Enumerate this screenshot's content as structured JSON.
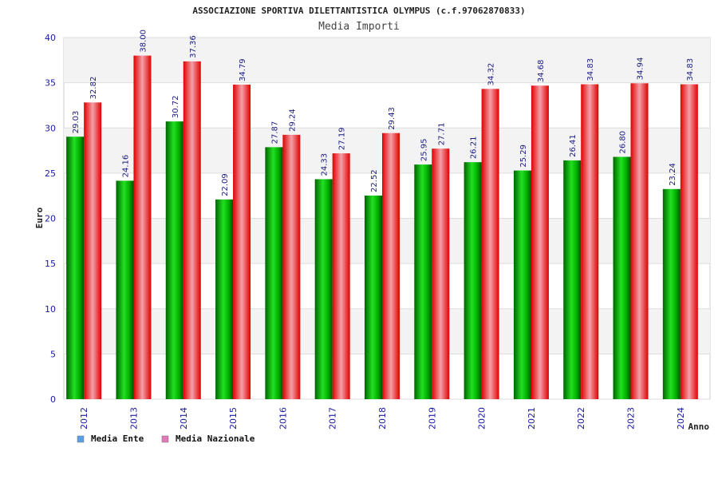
{
  "chart_data": {
    "type": "bar",
    "title": "ASSOCIAZIONE SPORTIVA DILETTANTISTICA OLYMPUS (c.f.97062870833)",
    "subtitle": "Media Importi",
    "xlabel": "Anno",
    "ylabel": "Euro",
    "ylim": [
      0,
      40
    ],
    "yticks": [
      0,
      5,
      10,
      15,
      20,
      25,
      30,
      35,
      40
    ],
    "grid": true,
    "legend_position": "bottom-left",
    "categories": [
      "2012",
      "2013",
      "2014",
      "2015",
      "2016",
      "2017",
      "2018",
      "2019",
      "2020",
      "2021",
      "2022",
      "2023",
      "2024"
    ],
    "series": [
      {
        "name": "Media Ente",
        "color": "#00c000",
        "values": [
          29.03,
          24.16,
          30.72,
          22.09,
          27.87,
          24.33,
          22.52,
          25.95,
          26.21,
          25.29,
          26.41,
          26.8,
          23.24
        ],
        "labels": [
          "29.03",
          "24.16",
          "30.72",
          "22.09",
          "27.87",
          "24.33",
          "22.52",
          "25.95",
          "26.21",
          "25.29",
          "26.41",
          "26.80",
          "23.24"
        ],
        "legend_color": "#5aa0e6"
      },
      {
        "name": "Media Nazionale",
        "color": "#ff2020",
        "values": [
          32.82,
          38.0,
          37.36,
          34.79,
          29.24,
          27.19,
          29.43,
          27.71,
          34.32,
          34.68,
          34.83,
          34.94,
          34.83
        ],
        "labels": [
          "32.82",
          "38.00",
          "37.36",
          "34.79",
          "29.24",
          "27.19",
          "29.43",
          "27.71",
          "34.32",
          "34.68",
          "34.83",
          "34.94",
          "34.83"
        ],
        "legend_color": "#e377b8"
      }
    ]
  }
}
